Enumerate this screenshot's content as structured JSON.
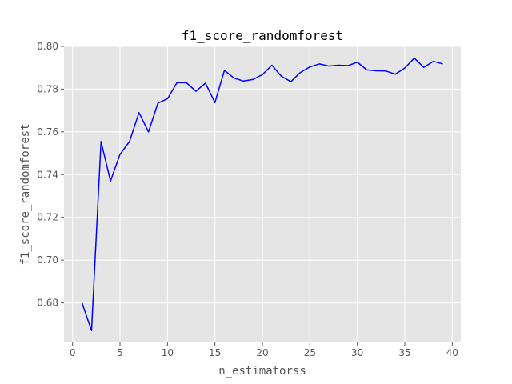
{
  "chart_data": {
    "type": "line",
    "title": "f1_score_randomforest",
    "xlabel": "n_estimatorss",
    "ylabel": "f1_score_randomforest",
    "xlim": [
      -0.9,
      40.9
    ],
    "ylim": [
      0.6615,
      0.8
    ],
    "xticks": [
      0,
      5,
      10,
      15,
      20,
      25,
      30,
      35,
      40
    ],
    "yticks": [
      0.68,
      0.7,
      0.72,
      0.74,
      0.76,
      0.78,
      0.8
    ],
    "ytick_labels": [
      "0.68",
      "0.70",
      "0.72",
      "0.74",
      "0.76",
      "0.78",
      "0.80"
    ],
    "grid": true,
    "background": "#E5E5E5",
    "grid_color": "#FFFFFF",
    "series": [
      {
        "color": "#0000FF",
        "x": [
          1,
          2,
          3,
          4,
          5,
          6,
          7,
          8,
          9,
          10,
          11,
          12,
          13,
          14,
          15,
          16,
          17,
          18,
          19,
          20,
          21,
          22,
          23,
          24,
          25,
          26,
          27,
          28,
          29,
          30,
          31,
          32,
          33,
          34,
          35,
          36,
          37,
          38,
          39
        ],
        "y": [
          0.68,
          0.667,
          0.7555,
          0.737,
          0.7495,
          0.7555,
          0.769,
          0.76,
          0.7735,
          0.7755,
          0.783,
          0.783,
          0.779,
          0.7828,
          0.7737,
          0.7888,
          0.7852,
          0.7838,
          0.7845,
          0.7868,
          0.7912,
          0.786,
          0.7835,
          0.7878,
          0.7904,
          0.7918,
          0.7908,
          0.7912,
          0.791,
          0.7926,
          0.789,
          0.7886,
          0.7885,
          0.787,
          0.7899,
          0.7945,
          0.7902,
          0.793,
          0.7918
        ]
      }
    ]
  }
}
